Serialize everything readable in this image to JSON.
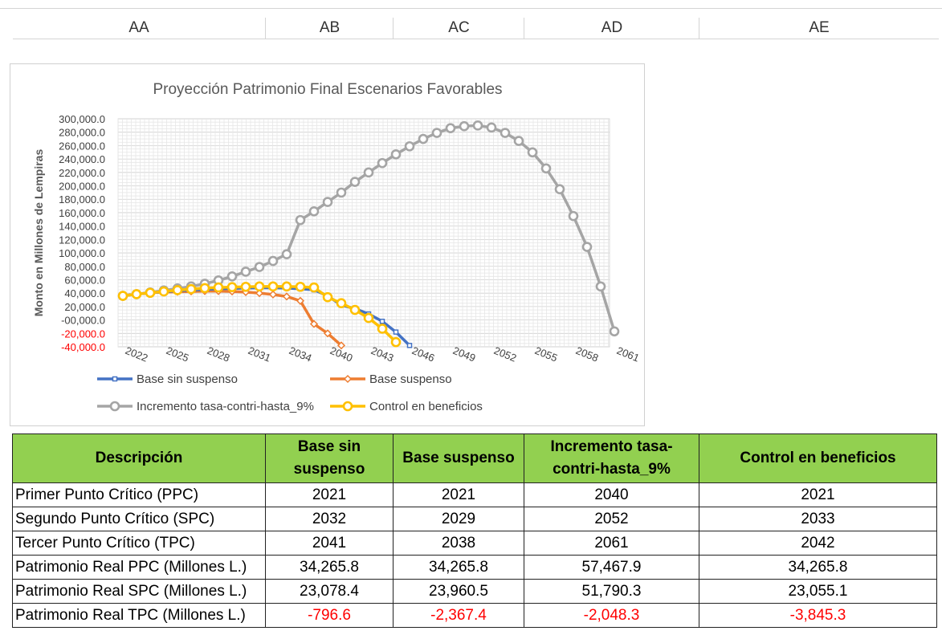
{
  "column_headers": [
    "AA",
    "AB",
    "AC",
    "AD",
    "AE"
  ],
  "colors": {
    "base_sin_suspenso": "#4472c4",
    "base_suspenso": "#ed7d31",
    "incremento": "#a5a5a5",
    "control": "#ffc000",
    "table_header": "#92d050",
    "negative": "#ff0000"
  },
  "chart_data": {
    "type": "line",
    "title": "Proyección Patrimonio Final Escenarios Favorables",
    "xlabel": "",
    "ylabel": "Monto en Millones de Lempiras",
    "ylim": [
      -40000,
      300000
    ],
    "y_ticks": [
      "300,000.0",
      "280,000.0",
      "260,000.0",
      "240,000.0",
      "220,000.0",
      "200,000.0",
      "180,000.0",
      "160,000.0",
      "140,000.0",
      "120,000.0",
      "100,000.0",
      "80,000.0",
      "60,000.0",
      "40,000.0",
      "20,000.0",
      "-00,000.0",
      "-20,000.0",
      "-40,000.0"
    ],
    "x_ticks": [
      "2022",
      "2025",
      "2028",
      "2031",
      "2034",
      "2040",
      "2043",
      "2046",
      "2049",
      "2052",
      "2055",
      "2058",
      "2061"
    ],
    "grid": true,
    "legend": "bottom",
    "series": [
      {
        "name": "Base sin suspenso",
        "marker": "square",
        "values": [
          36000,
          38500,
          40500,
          42000,
          43500,
          44500,
          45500,
          46500,
          47000,
          47500,
          48000,
          48000,
          47500,
          46500,
          45000,
          36000,
          22000,
          17000,
          9000,
          -2000,
          -18000,
          -38000
        ]
      },
      {
        "name": "Base suspenso",
        "marker": "diamond",
        "values": [
          36000,
          38500,
          40500,
          41500,
          42000,
          42500,
          43000,
          43000,
          42500,
          41500,
          40000,
          38000,
          35000,
          28500,
          -6000,
          -20000,
          -38000
        ]
      },
      {
        "name": "Incremento tasa-contri-hasta_9%",
        "marker": "circle",
        "values": [
          36000,
          38500,
          41000,
          44000,
          47000,
          50000,
          54000,
          59000,
          65000,
          72000,
          79000,
          88000,
          98000,
          149000,
          162000,
          176000,
          190000,
          206000,
          220000,
          234000,
          247000,
          259000,
          270000,
          279000,
          286000,
          289000,
          290000,
          287000,
          279000,
          267000,
          250000,
          226000,
          195000,
          155000,
          109000,
          50000,
          -17000
        ]
      },
      {
        "name": "Control en beneficios",
        "marker": "circle",
        "values": [
          36000,
          38500,
          40500,
          42500,
          44500,
          46000,
          47500,
          48500,
          49000,
          49500,
          50000,
          50000,
          50000,
          49500,
          48500,
          34000,
          25000,
          15000,
          3000,
          -13000,
          -33000
        ]
      }
    ]
  },
  "table": {
    "headers": [
      "Descripción",
      "Base sin suspenso",
      "Base suspenso",
      "Incremento tasa-contri-hasta_9%",
      "Control en beneficios"
    ],
    "rows": [
      {
        "label": "Primer Punto Crítico (PPC)",
        "values": [
          "2021",
          "2021",
          "2040",
          "2021"
        ]
      },
      {
        "label": "Segundo Punto Crítico (SPC)",
        "values": [
          "2032",
          "2029",
          "2052",
          "2033"
        ]
      },
      {
        "label": "Tercer Punto Crítico (TPC)",
        "values": [
          "2041",
          "2038",
          "2061",
          "2042"
        ]
      },
      {
        "label": "Patrimonio Real PPC (Millones L.)",
        "values": [
          "34,265.8",
          "34,265.8",
          "57,467.9",
          "34,265.8"
        ]
      },
      {
        "label": "Patrimonio Real SPC (Millones L.)",
        "values": [
          "23,078.4",
          "23,960.5",
          "51,790.3",
          "23,055.1"
        ]
      },
      {
        "label": "Patrimonio Real TPC (Millones L.)",
        "values": [
          "-796.6",
          "-2,367.4",
          "-2,048.3",
          "-3,845.3"
        ]
      }
    ]
  }
}
